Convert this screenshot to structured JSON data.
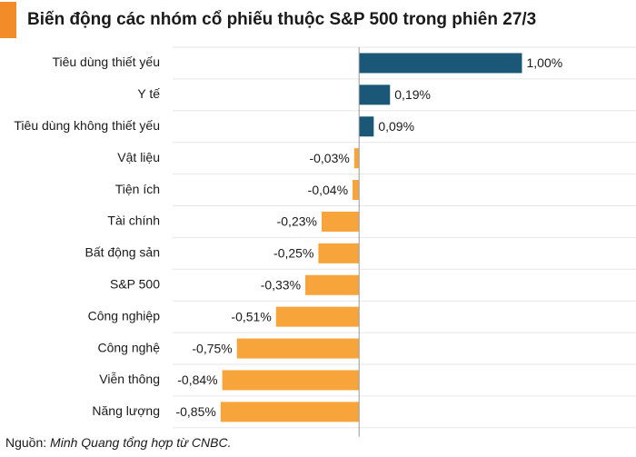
{
  "chart_data": {
    "type": "bar",
    "orientation": "horizontal",
    "title": "Biến động các nhóm cổ phiếu thuộc S&P 500 trong phiên 27/3",
    "categories": [
      "Tiêu dùng thiết yếu",
      "Y tế",
      "Tiêu dùng không thiết yếu",
      "Vật liệu",
      "Tiện ích",
      "Tài chính",
      "Bất động sản",
      "S&P 500",
      "Công nghiệp",
      "Công nghệ",
      "Viễn thông",
      "Năng lượng"
    ],
    "values": [
      1.0,
      0.19,
      0.09,
      -0.03,
      -0.04,
      -0.23,
      -0.25,
      -0.33,
      -0.51,
      -0.75,
      -0.84,
      -0.85
    ],
    "value_labels": [
      "1,00%",
      "0,19%",
      "0,09%",
      "-0,03%",
      "-0,04%",
      "-0,23%",
      "-0,25%",
      "-0,33%",
      "-0,51%",
      "-0,75%",
      "-0,84%",
      "-0,85%"
    ],
    "positive_color": "#1b5877",
    "negative_color": "#f7a43b",
    "xlim": [
      -1.1,
      1.7
    ],
    "source": {
      "label": "Nguồn:",
      "text": "Minh Quang tổng hợp từ CNBC."
    }
  }
}
